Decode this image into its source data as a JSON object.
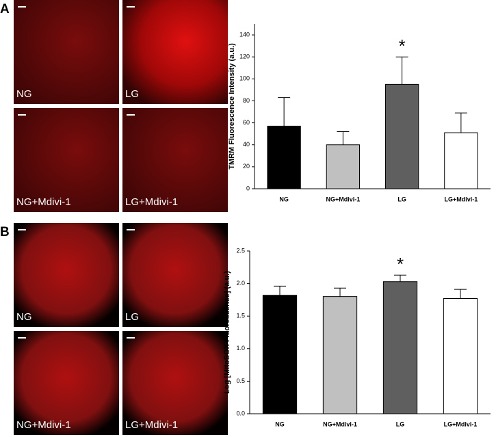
{
  "panels": [
    {
      "label": "A",
      "images": [
        "NG",
        "LG",
        "NG+Mdivi-1",
        "LG+Mdivi-1"
      ]
    },
    {
      "label": "B",
      "images": [
        "NG",
        "LG",
        "NG+Mdivi-1",
        "LG+Mdivi-1"
      ]
    }
  ],
  "chart_data": [
    {
      "type": "bar",
      "y_label": "TMRM Fluorescence Intensity (a.u.)",
      "categories": [
        "NG",
        "NG+Mdivi-1",
        "LG",
        "LG+Mdivi-1"
      ],
      "values": [
        57,
        40,
        95,
        51
      ],
      "errors": [
        26,
        12,
        25,
        18
      ],
      "colors": [
        "#000000",
        "#c0c0c0",
        "#5f5f5f",
        "#ffffff"
      ],
      "ylim": [
        0,
        150
      ],
      "yticks": [
        0,
        20,
        40,
        60,
        80,
        100,
        120,
        140
      ],
      "annotation": "*"
    },
    {
      "type": "bar",
      "y_label": "Log [MitoSOX Fluorescence] (a.u.)",
      "categories": [
        "NG",
        "NG+Mdivi-1",
        "LG",
        "LG+Mdivi-1"
      ],
      "values": [
        1.82,
        1.8,
        2.03,
        1.77
      ],
      "errors": [
        0.14,
        0.13,
        0.1,
        0.14
      ],
      "colors": [
        "#000000",
        "#c0c0c0",
        "#5f5f5f",
        "#ffffff"
      ],
      "ylim": [
        0,
        2.5
      ],
      "yticks": [
        {
          "value": 0,
          "label": "0.0"
        },
        0.5,
        {
          "value": 1,
          "label": "1.0"
        },
        1.5,
        {
          "value": 2,
          "label": "2.0"
        },
        2.5
      ],
      "annotation": "*"
    }
  ]
}
